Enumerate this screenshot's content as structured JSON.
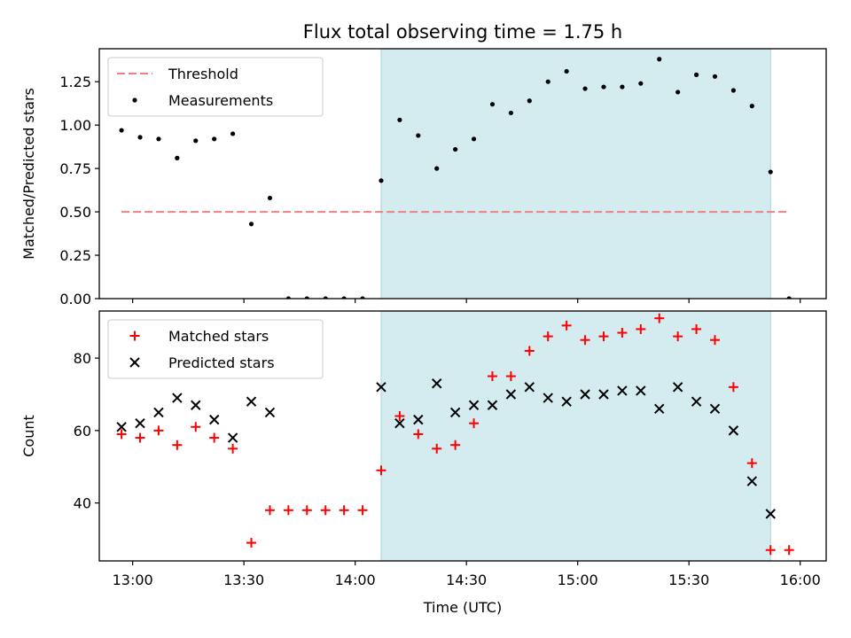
{
  "figure": {
    "title": "Flux total observing time = 1.75 h"
  },
  "chart_data": [
    {
      "type": "scatter",
      "title": "Flux total observing time = 1.75 h",
      "xlabel": "",
      "ylabel": "Matched/Predicted stars",
      "xlim": [
        "12:51",
        "16:07"
      ],
      "ylim": [
        0,
        1.44
      ],
      "x_ticks": [
        "13:00",
        "13:30",
        "14:00",
        "14:30",
        "15:00",
        "15:30",
        "16:00"
      ],
      "y_ticks": [
        0.0,
        0.25,
        0.5,
        0.75,
        1.0,
        1.25
      ],
      "y_tick_labels": [
        "0.00",
        "0.25",
        "0.50",
        "0.75",
        "1.00",
        "1.25"
      ],
      "highlight_span": {
        "x_start": "14:07",
        "x_end": "15:52",
        "color": "#d4ebf0"
      },
      "legend_position": "top-left",
      "threshold": {
        "name": "Threshold",
        "value": 0.5,
        "x_start": "12:57",
        "x_end": "15:57",
        "color": "#f08080",
        "style": "dashed"
      },
      "series": [
        {
          "name": "Measurements",
          "color": "#000000",
          "marker": "dot",
          "points": [
            [
              "12:57",
              0.97
            ],
            [
              "13:02",
              0.93
            ],
            [
              "13:07",
              0.92
            ],
            [
              "13:12",
              0.81
            ],
            [
              "13:17",
              0.91
            ],
            [
              "13:22",
              0.92
            ],
            [
              "13:27",
              0.95
            ],
            [
              "13:32",
              0.43
            ],
            [
              "13:37",
              0.58
            ],
            [
              "13:42",
              0.0
            ],
            [
              "13:47",
              0.0
            ],
            [
              "13:52",
              0.0
            ],
            [
              "13:57",
              0.0
            ],
            [
              "14:02",
              0.0
            ],
            [
              "14:07",
              0.68
            ],
            [
              "14:12",
              1.03
            ],
            [
              "14:17",
              0.94
            ],
            [
              "14:22",
              0.75
            ],
            [
              "14:27",
              0.86
            ],
            [
              "14:32",
              0.92
            ],
            [
              "14:37",
              1.12
            ],
            [
              "14:42",
              1.07
            ],
            [
              "14:47",
              1.14
            ],
            [
              "14:52",
              1.25
            ],
            [
              "14:57",
              1.31
            ],
            [
              "15:02",
              1.21
            ],
            [
              "15:07",
              1.22
            ],
            [
              "15:12",
              1.22
            ],
            [
              "15:17",
              1.24
            ],
            [
              "15:22",
              1.38
            ],
            [
              "15:27",
              1.19
            ],
            [
              "15:32",
              1.29
            ],
            [
              "15:37",
              1.28
            ],
            [
              "15:42",
              1.2
            ],
            [
              "15:47",
              1.11
            ],
            [
              "15:52",
              0.73
            ],
            [
              "15:57",
              0.0
            ]
          ]
        }
      ]
    },
    {
      "type": "scatter",
      "title": "",
      "xlabel": "Time (UTC)",
      "ylabel": "Count",
      "xlim": [
        "12:51",
        "16:07"
      ],
      "ylim": [
        24,
        93
      ],
      "x_ticks": [
        "13:00",
        "13:30",
        "14:00",
        "14:30",
        "15:00",
        "15:30",
        "16:00"
      ],
      "y_ticks": [
        40,
        60,
        80
      ],
      "y_tick_labels": [
        "40",
        "60",
        "80"
      ],
      "highlight_span": {
        "x_start": "14:07",
        "x_end": "15:52",
        "color": "#d4ebf0"
      },
      "legend_position": "top-left",
      "series": [
        {
          "name": "Matched stars",
          "color": "#ff0000",
          "marker": "plus",
          "points": [
            [
              "12:57",
              59
            ],
            [
              "13:02",
              58
            ],
            [
              "13:07",
              60
            ],
            [
              "13:12",
              56
            ],
            [
              "13:17",
              61
            ],
            [
              "13:22",
              58
            ],
            [
              "13:27",
              55
            ],
            [
              "13:32",
              29
            ],
            [
              "13:37",
              38
            ],
            [
              "13:42",
              38
            ],
            [
              "13:47",
              38
            ],
            [
              "13:52",
              38
            ],
            [
              "13:57",
              38
            ],
            [
              "14:02",
              38
            ],
            [
              "14:07",
              49
            ],
            [
              "14:12",
              64
            ],
            [
              "14:17",
              59
            ],
            [
              "14:22",
              55
            ],
            [
              "14:27",
              56
            ],
            [
              "14:32",
              62
            ],
            [
              "14:37",
              75
            ],
            [
              "14:42",
              75
            ],
            [
              "14:47",
              82
            ],
            [
              "14:52",
              86
            ],
            [
              "14:57",
              89
            ],
            [
              "15:02",
              85
            ],
            [
              "15:07",
              86
            ],
            [
              "15:12",
              87
            ],
            [
              "15:17",
              88
            ],
            [
              "15:22",
              91
            ],
            [
              "15:27",
              86
            ],
            [
              "15:32",
              88
            ],
            [
              "15:37",
              85
            ],
            [
              "15:42",
              72
            ],
            [
              "15:47",
              51
            ],
            [
              "15:52",
              27
            ],
            [
              "15:57",
              27
            ]
          ]
        },
        {
          "name": "Predicted stars",
          "color": "#000000",
          "marker": "x",
          "points": [
            [
              "12:57",
              61
            ],
            [
              "13:02",
              62
            ],
            [
              "13:07",
              65
            ],
            [
              "13:12",
              69
            ],
            [
              "13:17",
              67
            ],
            [
              "13:22",
              63
            ],
            [
              "13:27",
              58
            ],
            [
              "13:32",
              68
            ],
            [
              "13:37",
              65
            ],
            [
              "14:07",
              72
            ],
            [
              "14:12",
              62
            ],
            [
              "14:17",
              63
            ],
            [
              "14:22",
              73
            ],
            [
              "14:27",
              65
            ],
            [
              "14:32",
              67
            ],
            [
              "14:37",
              67
            ],
            [
              "14:42",
              70
            ],
            [
              "14:47",
              72
            ],
            [
              "14:52",
              69
            ],
            [
              "14:57",
              68
            ],
            [
              "15:02",
              70
            ],
            [
              "15:07",
              70
            ],
            [
              "15:12",
              71
            ],
            [
              "15:17",
              71
            ],
            [
              "15:22",
              66
            ],
            [
              "15:27",
              72
            ],
            [
              "15:32",
              68
            ],
            [
              "15:37",
              66
            ],
            [
              "15:42",
              60
            ],
            [
              "15:47",
              46
            ],
            [
              "15:52",
              37
            ]
          ]
        }
      ]
    }
  ]
}
